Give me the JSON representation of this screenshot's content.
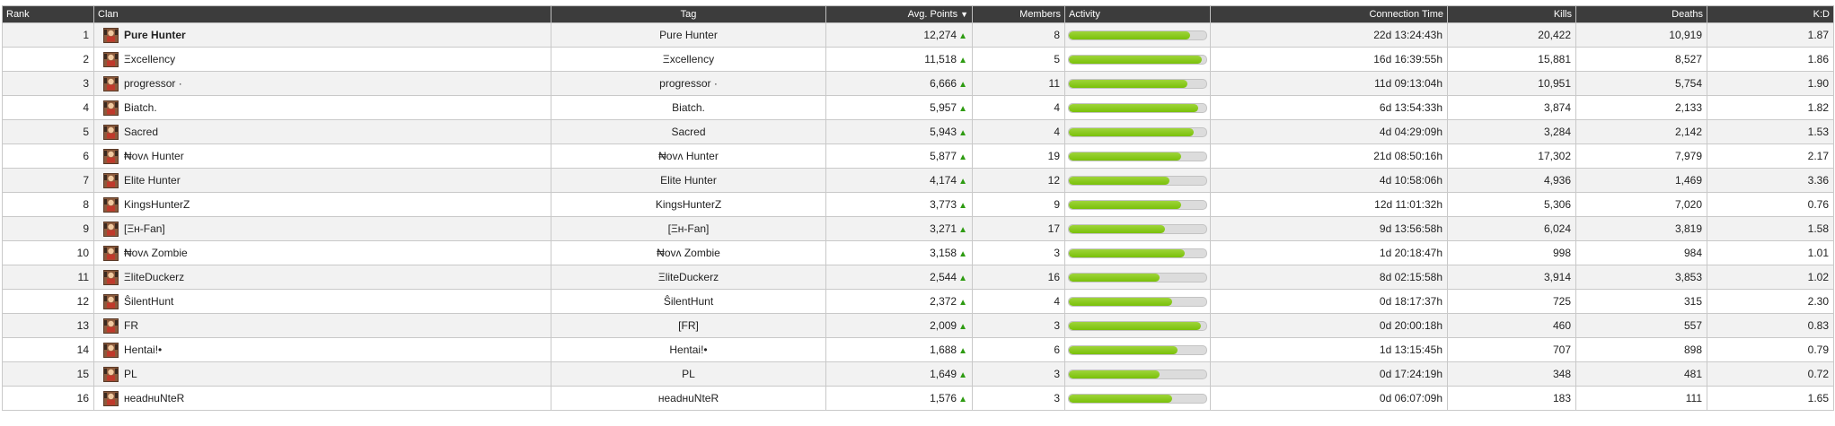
{
  "colors": {
    "header_bg": "#3c3c3c",
    "activity_bar": "#82c41a",
    "trend_up": "#2e9b12"
  },
  "icons": {
    "clan_avatar": "clan-avatar-icon",
    "trend": "arrow-up-icon",
    "sort": "sort-descending-icon"
  },
  "columns": {
    "rank": "Rank",
    "clan": "Clan",
    "tag": "Tag",
    "avg_points": "Avg. Points",
    "avg_points_sort": "▼",
    "members": "Members",
    "activity": "Activity",
    "connection_time": "Connection Time",
    "kills": "Kills",
    "deaths": "Deaths",
    "kd": "K:D"
  },
  "trend_symbol": "▲",
  "rows": [
    {
      "rank": "1",
      "clan": "Pure Hunter",
      "tag": "Pure Hunter",
      "avg_points": "12,274",
      "members": "8",
      "activity": 0.88,
      "connection_time": "22d 13:24:43h",
      "kills": "20,422",
      "deaths": "10,919",
      "kd": "1.87"
    },
    {
      "rank": "2",
      "clan": "Ξxcellency",
      "tag": "Ξxcellency",
      "avg_points": "11,518",
      "members": "5",
      "activity": 0.97,
      "connection_time": "16d 16:39:55h",
      "kills": "15,881",
      "deaths": "8,527",
      "kd": "1.86"
    },
    {
      "rank": "3",
      "clan": "progressor ·",
      "tag": "progressor ·",
      "avg_points": "6,666",
      "members": "11",
      "activity": 0.86,
      "connection_time": "11d 09:13:04h",
      "kills": "10,951",
      "deaths": "5,754",
      "kd": "1.90"
    },
    {
      "rank": "4",
      "clan": "Biatch.",
      "tag": "Biatch.",
      "avg_points": "5,957",
      "members": "4",
      "activity": 0.94,
      "connection_time": "6d 13:54:33h",
      "kills": "3,874",
      "deaths": "2,133",
      "kd": "1.82"
    },
    {
      "rank": "5",
      "clan": "Sacred",
      "tag": "Sacred",
      "avg_points": "5,943",
      "members": "4",
      "activity": 0.91,
      "connection_time": "4d 04:29:09h",
      "kills": "3,284",
      "deaths": "2,142",
      "kd": "1.53"
    },
    {
      "rank": "6",
      "clan": "₦ovʌ Hunter",
      "tag": "₦ovʌ Hunter",
      "avg_points": "5,877",
      "members": "19",
      "activity": 0.82,
      "connection_time": "21d 08:50:16h",
      "kills": "17,302",
      "deaths": "7,979",
      "kd": "2.17"
    },
    {
      "rank": "7",
      "clan": "Elite Hunter",
      "tag": "Elite Hunter",
      "avg_points": "4,174",
      "members": "12",
      "activity": 0.73,
      "connection_time": "4d 10:58:06h",
      "kills": "4,936",
      "deaths": "1,469",
      "kd": "3.36"
    },
    {
      "rank": "8",
      "clan": "KingsHunterZ",
      "tag": "KingsHunterZ",
      "avg_points": "3,773",
      "members": "9",
      "activity": 0.82,
      "connection_time": "12d 11:01:32h",
      "kills": "5,306",
      "deaths": "7,020",
      "kd": "0.76"
    },
    {
      "rank": "9",
      "clan": "[Ξʜ-Fan]",
      "tag": "[Ξʜ-Fan]",
      "avg_points": "3,271",
      "members": "17",
      "activity": 0.7,
      "connection_time": "9d 13:56:58h",
      "kills": "6,024",
      "deaths": "3,819",
      "kd": "1.58"
    },
    {
      "rank": "10",
      "clan": "₦ovʌ Zombie",
      "tag": "₦ovʌ Zombie",
      "avg_points": "3,158",
      "members": "3",
      "activity": 0.84,
      "connection_time": "1d 20:18:47h",
      "kills": "998",
      "deaths": "984",
      "kd": "1.01"
    },
    {
      "rank": "11",
      "clan": "ΞliteDuckerz",
      "tag": "ΞliteDuckerz",
      "avg_points": "2,544",
      "members": "16",
      "activity": 0.66,
      "connection_time": "8d 02:15:58h",
      "kills": "3,914",
      "deaths": "3,853",
      "kd": "1.02"
    },
    {
      "rank": "12",
      "clan": "ŜilentHunt",
      "tag": "ŜilentHunt",
      "avg_points": "2,372",
      "members": "4",
      "activity": 0.75,
      "connection_time": "0d 18:17:37h",
      "kills": "725",
      "deaths": "315",
      "kd": "2.30"
    },
    {
      "rank": "13",
      "clan": "FR",
      "tag": "[FR]",
      "avg_points": "2,009",
      "members": "3",
      "activity": 0.96,
      "connection_time": "0d 20:00:18h",
      "kills": "460",
      "deaths": "557",
      "kd": "0.83"
    },
    {
      "rank": "14",
      "clan": "Hentai!•",
      "tag": "Hentai!•",
      "avg_points": "1,688",
      "members": "6",
      "activity": 0.79,
      "connection_time": "1d 13:15:45h",
      "kills": "707",
      "deaths": "898",
      "kd": "0.79"
    },
    {
      "rank": "15",
      "clan": "PL",
      "tag": "PL",
      "avg_points": "1,649",
      "members": "3",
      "activity": 0.66,
      "connection_time": "0d 17:24:19h",
      "kills": "348",
      "deaths": "481",
      "kd": "0.72"
    },
    {
      "rank": "16",
      "clan": "ʜeadʜuNteR",
      "tag": "ʜeadʜuNteR",
      "avg_points": "1,576",
      "members": "3",
      "activity": 0.75,
      "connection_time": "0d 06:07:09h",
      "kills": "183",
      "deaths": "111",
      "kd": "1.65"
    }
  ]
}
